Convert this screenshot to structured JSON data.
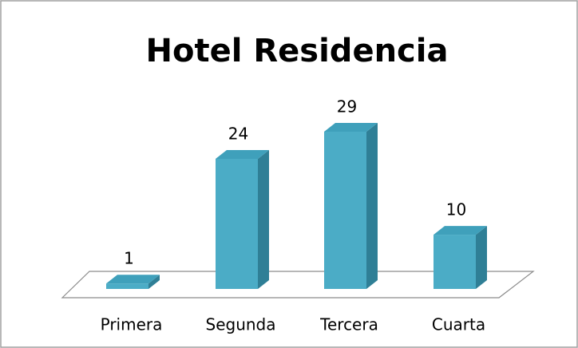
{
  "chart_data": {
    "type": "bar3d",
    "title": "Hotel Residencia",
    "categories": [
      "Primera",
      "Segunda",
      "Tercera",
      "Cuarta"
    ],
    "values": [
      1,
      24,
      29,
      10
    ],
    "color": "#4bacc6"
  }
}
